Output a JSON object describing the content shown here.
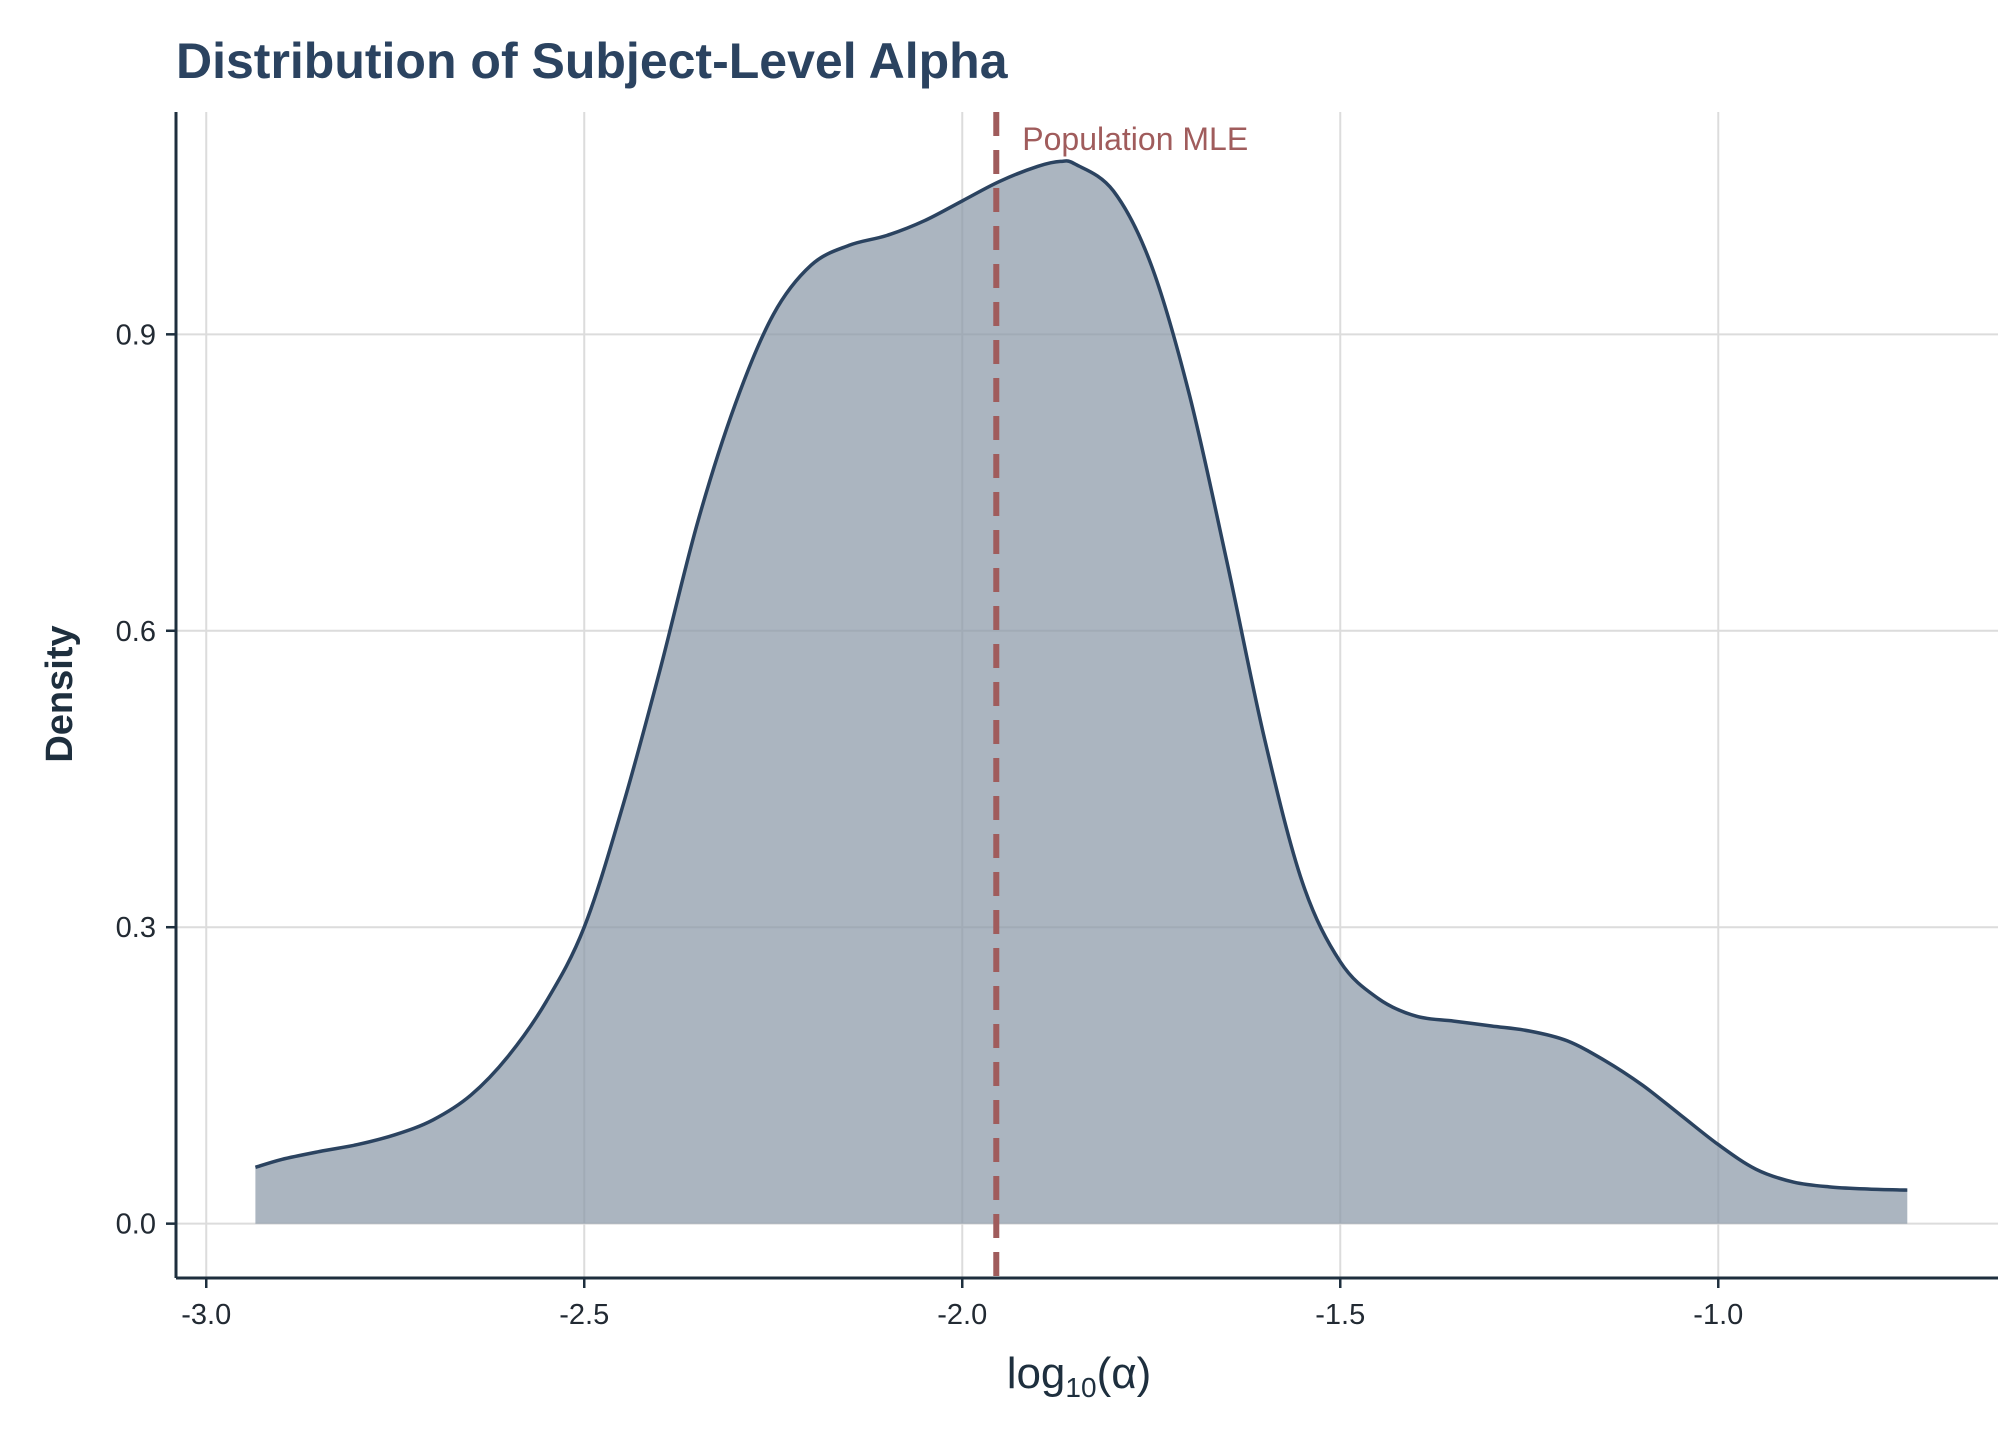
{
  "chart_data": {
    "type": "area",
    "title": "Distribution of Subject-Level Alpha",
    "xlabel": {
      "base": "log",
      "subscript": "10",
      "argument": "(α)"
    },
    "ylabel": "Density",
    "xlim": [
      -3.04,
      -0.63
    ],
    "ylim": [
      -0.055,
      1.125
    ],
    "x_ticks": [
      -3.0,
      -2.5,
      -2.0,
      -1.5,
      -1.0
    ],
    "x_tick_labels": [
      "-3.0",
      "-2.5",
      "-2.0",
      "-1.5",
      "-1.0"
    ],
    "y_ticks": [
      0.0,
      0.3,
      0.6,
      0.9
    ],
    "y_tick_labels": [
      "0.0",
      "0.3",
      "0.6",
      "0.9"
    ],
    "grid": true,
    "series": [
      {
        "x": [
          -2.935,
          -2.9,
          -2.85,
          -2.8,
          -2.75,
          -2.7,
          -2.65,
          -2.6,
          -2.55,
          -2.5,
          -2.45,
          -2.4,
          -2.35,
          -2.3,
          -2.25,
          -2.2,
          -2.15,
          -2.1,
          -2.05,
          -2.0,
          -1.95,
          -1.9,
          -1.87,
          -1.85,
          -1.8,
          -1.75,
          -1.7,
          -1.65,
          -1.6,
          -1.55,
          -1.5,
          -1.45,
          -1.4,
          -1.35,
          -1.3,
          -1.25,
          -1.2,
          -1.15,
          -1.1,
          -1.05,
          -1.0,
          -0.95,
          -0.9,
          -0.85,
          -0.8,
          -0.75
        ],
        "y": [
          0.057,
          0.065,
          0.073,
          0.08,
          0.09,
          0.105,
          0.13,
          0.17,
          0.225,
          0.3,
          0.42,
          0.56,
          0.71,
          0.83,
          0.92,
          0.97,
          0.99,
          1.0,
          1.015,
          1.035,
          1.055,
          1.07,
          1.075,
          1.072,
          1.045,
          0.97,
          0.84,
          0.67,
          0.49,
          0.345,
          0.265,
          0.228,
          0.21,
          0.205,
          0.2,
          0.195,
          0.185,
          0.165,
          0.14,
          0.11,
          0.08,
          0.055,
          0.042,
          0.037,
          0.035,
          0.034
        ]
      }
    ],
    "annotations": [
      {
        "type": "vline",
        "x": -1.955,
        "label": "Population MLE",
        "style": "dashed",
        "color": "#a05c5c"
      }
    ],
    "colors": {
      "fill": "#8a99a8",
      "line": "#2b4360",
      "reference": "#a05c5c",
      "title": "#2b4360"
    }
  }
}
